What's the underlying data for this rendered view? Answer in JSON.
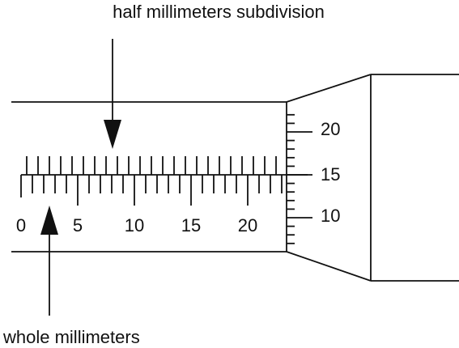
{
  "labels": {
    "half_millimeters": "half millimeters subdivision",
    "whole_millimeters": "whole millimeters"
  },
  "sleeve_scale": {
    "numbers": [
      "0",
      "5",
      "10",
      "15",
      "20"
    ],
    "values": [
      0,
      5,
      10,
      15,
      20
    ],
    "mm_max": 23
  },
  "thimble_scale": {
    "numbers": [
      "20",
      "15",
      "10"
    ],
    "values": [
      20,
      15,
      10
    ],
    "reading_at_line": 15
  }
}
